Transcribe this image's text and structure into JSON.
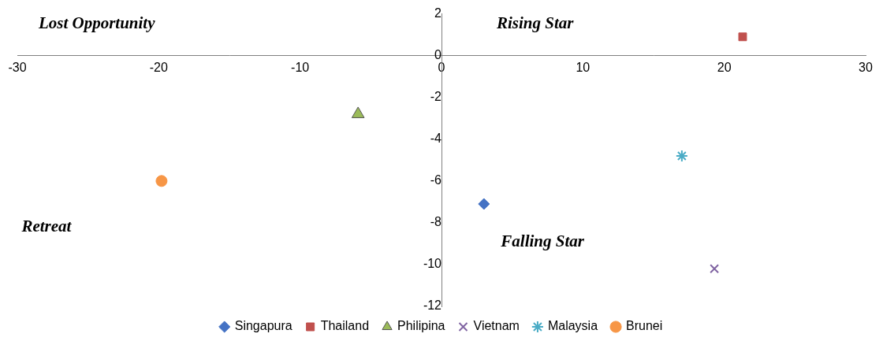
{
  "chart_data": {
    "type": "scatter",
    "annotations": [
      "Lost Opportunity",
      "Rising Star",
      "Retreat",
      "Falling Star"
    ],
    "series": [
      {
        "name": "Singapura",
        "color": "#4472c4",
        "marker": "diamond",
        "x": [
          3
        ],
        "values": [
          -7.1
        ]
      },
      {
        "name": "Thailand",
        "color": "#c0504d",
        "marker": "square",
        "x": [
          21.3
        ],
        "values": [
          0.9
        ]
      },
      {
        "name": "Philipina",
        "color": "#9bbb59",
        "marker": "triangle",
        "x": [
          -5.9
        ],
        "values": [
          -2.8
        ]
      },
      {
        "name": "Vietnam",
        "color": "#8064a2",
        "marker": "x",
        "x": [
          19.3
        ],
        "values": [
          -10.2
        ]
      },
      {
        "name": "Malaysia",
        "color": "#4bacc6",
        "marker": "star",
        "x": [
          17
        ],
        "values": [
          -4.8
        ]
      },
      {
        "name": "Brunei",
        "color": "#f79646",
        "marker": "circle",
        "x": [
          -19.8
        ],
        "values": [
          -6
        ]
      }
    ],
    "xlim": [
      -30,
      30
    ],
    "xticks": [
      -30,
      -20,
      -10,
      0,
      10,
      20,
      30
    ],
    "ylim": [
      -12,
      2
    ],
    "yticks": [
      -12,
      -10,
      -8,
      -6,
      -4,
      -2,
      0,
      2
    ],
    "grid": false,
    "legend": "bottom"
  }
}
